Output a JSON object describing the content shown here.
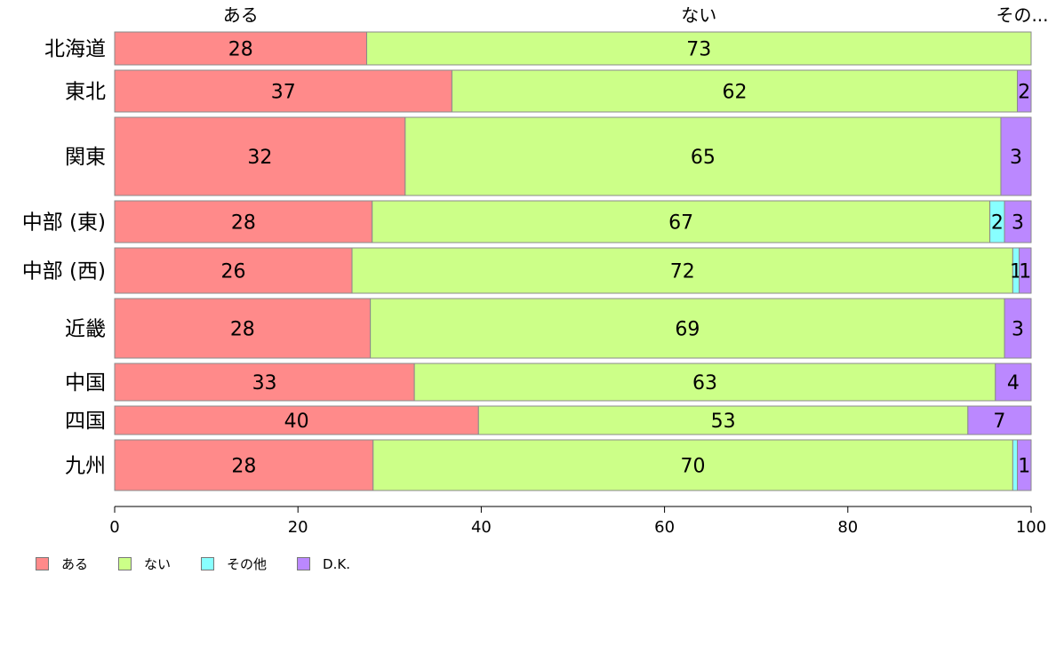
{
  "chart_data": {
    "type": "bar",
    "orientation": "horizontal",
    "stacked": true,
    "categories": [
      "北海道",
      "東北",
      "関東",
      "中部 (東)",
      "中部 (西)",
      "近畿",
      "中国",
      "四国",
      "九州"
    ],
    "series": [
      {
        "name": "ある",
        "color": "#FF8A8A",
        "values": [
          27.5,
          36.8,
          31.7,
          28.1,
          25.9,
          27.9,
          32.7,
          39.7,
          28.2
        ],
        "labels": [
          "28",
          "37",
          "32",
          "28",
          "26",
          "28",
          "33",
          "40",
          "28"
        ]
      },
      {
        "name": "ない",
        "color": "#CCFF88",
        "values": [
          72.5,
          61.7,
          65.0,
          67.4,
          72.1,
          69.2,
          63.4,
          53.4,
          69.8
        ],
        "labels": [
          "73",
          "62",
          "65",
          "67",
          "72",
          "69",
          "63",
          "53",
          "70"
        ]
      },
      {
        "name": "その他",
        "color": "#88FFFF",
        "values": [
          0,
          0,
          0,
          1.6,
          0.7,
          0,
          0,
          0,
          0.5
        ],
        "labels": [
          "",
          "",
          "",
          "2",
          "1",
          "",
          "",
          "",
          ""
        ]
      },
      {
        "name": "D.K.",
        "color": "#BB88FF",
        "values": [
          0,
          1.5,
          3.3,
          2.9,
          1.3,
          2.9,
          3.9,
          6.9,
          1.5
        ],
        "labels": [
          "",
          "2",
          "3",
          "3",
          "1",
          "3",
          "4",
          "7",
          "1"
        ]
      }
    ],
    "row_weights": [
      37,
      47,
      88,
      47,
      51,
      67,
      42,
      32,
      57
    ],
    "top_labels": [
      "ある",
      "ない",
      "その..."
    ],
    "xlim": [
      0,
      100
    ],
    "xticks": [
      0,
      20,
      40,
      60,
      80,
      100
    ],
    "xtick_labels": [
      "0",
      "20",
      "40",
      "60",
      "80",
      "100"
    ],
    "legend_position": "bottom-left"
  },
  "legend": {
    "items": [
      {
        "label": "ある",
        "color": "#FF8A8A"
      },
      {
        "label": "ない",
        "color": "#CCFF88"
      },
      {
        "label": "その他",
        "color": "#88FFFF"
      },
      {
        "label": "D.K.",
        "color": "#BB88FF"
      }
    ]
  }
}
